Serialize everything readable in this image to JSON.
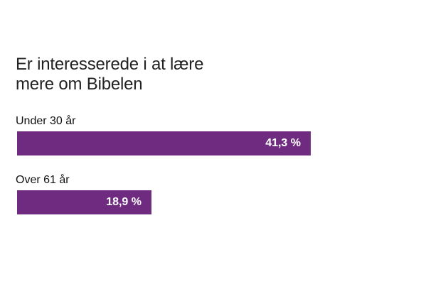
{
  "colors": {
    "bar": "#6e2b80",
    "text": "#222222",
    "bar_label": "#ffffff"
  },
  "chart_data": {
    "type": "bar",
    "orientation": "horizontal",
    "title_lines": [
      "Er interesserede i at lære",
      "mere om Bibelen"
    ],
    "categories": [
      "Under 30 år",
      "Over 61 år"
    ],
    "values": [
      41.3,
      18.9
    ],
    "value_labels": [
      "41,3 %",
      "18,9 %"
    ],
    "unit": "%",
    "xlim": [
      0,
      53
    ],
    "grid": false,
    "legend": "none"
  }
}
